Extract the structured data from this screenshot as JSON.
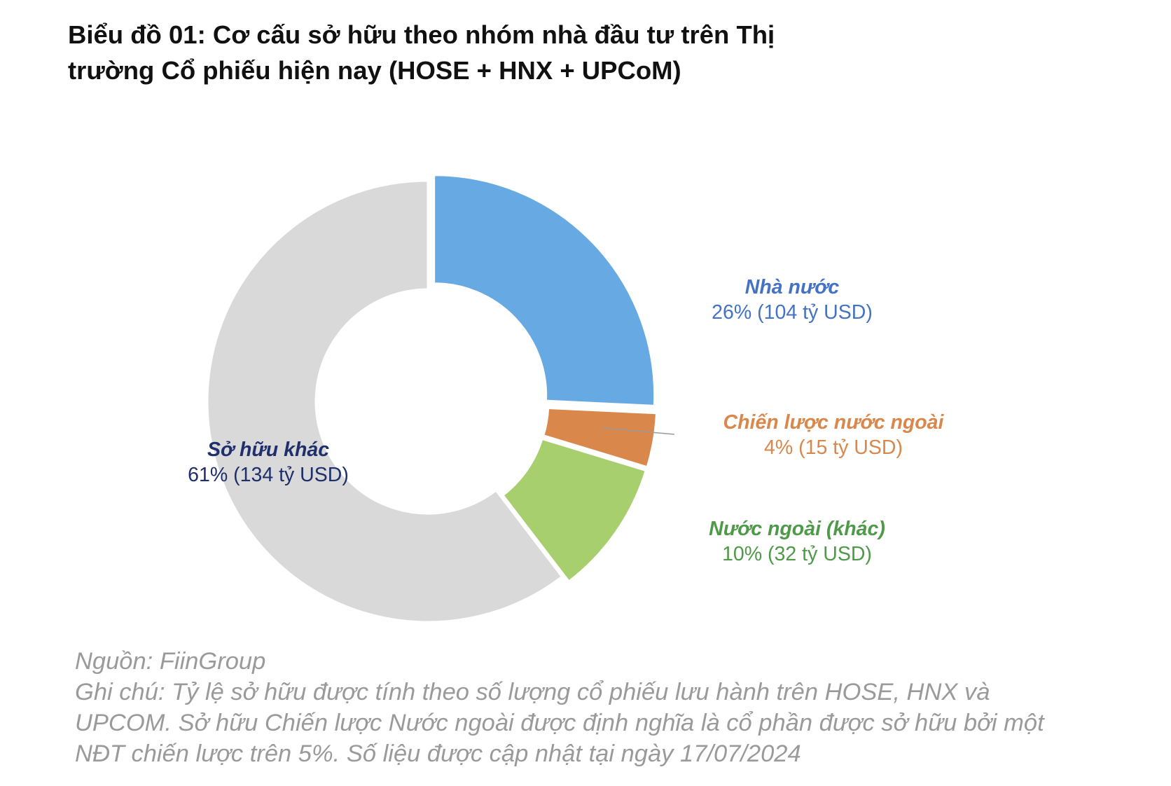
{
  "chart_data": {
    "type": "pie",
    "variant": "donut",
    "title_lines": [
      "Biểu đồ 01: Cơ cấu sở hữu theo nhóm nhà đầu tư trên Thị",
      "trường Cổ phiếu hiện nay (HOSE + HNX + UPCoM)"
    ],
    "slices": [
      {
        "name": "Nhà nước",
        "value_text": "26% (104 tỷ USD)",
        "percent": 26,
        "value_busd": 104,
        "color": "#67A9E3",
        "label_color": "#4472C4",
        "exploded": true
      },
      {
        "name": "Chiến lược nước ngoài",
        "value_text": "4% (15 tỷ USD)",
        "percent": 4,
        "value_busd": 15,
        "color": "#D9874B",
        "label_color": "#D9874B",
        "exploded": true
      },
      {
        "name": "Nước ngoài (khác)",
        "value_text": "10% (32 tỷ USD)",
        "percent": 10,
        "value_busd": 32,
        "color": "#A7CF6E",
        "label_color": "#4E9A48",
        "exploded": true
      },
      {
        "name": "Sở hữu khác",
        "value_text": "61% (134 tỷ USD)",
        "percent": 61,
        "value_busd": 134,
        "color": "#D9D9D9",
        "label_color": "#1F2F6B",
        "exploded": false
      }
    ]
  },
  "footnote": {
    "lines": [
      "Nguồn: FiinGroup",
      "Ghi chú: Tỷ lệ sở hữu được tính theo số lượng cổ phiếu lưu hành trên HOSE, HNX và",
      "UPCOM. Sở hữu Chiến lược Nước ngoài được định nghĩa là cổ phần được sở hữu bởi một",
      "NĐT chiến lược trên 5%. Số liệu được cập nhật tại ngày 17/07/2024"
    ]
  }
}
